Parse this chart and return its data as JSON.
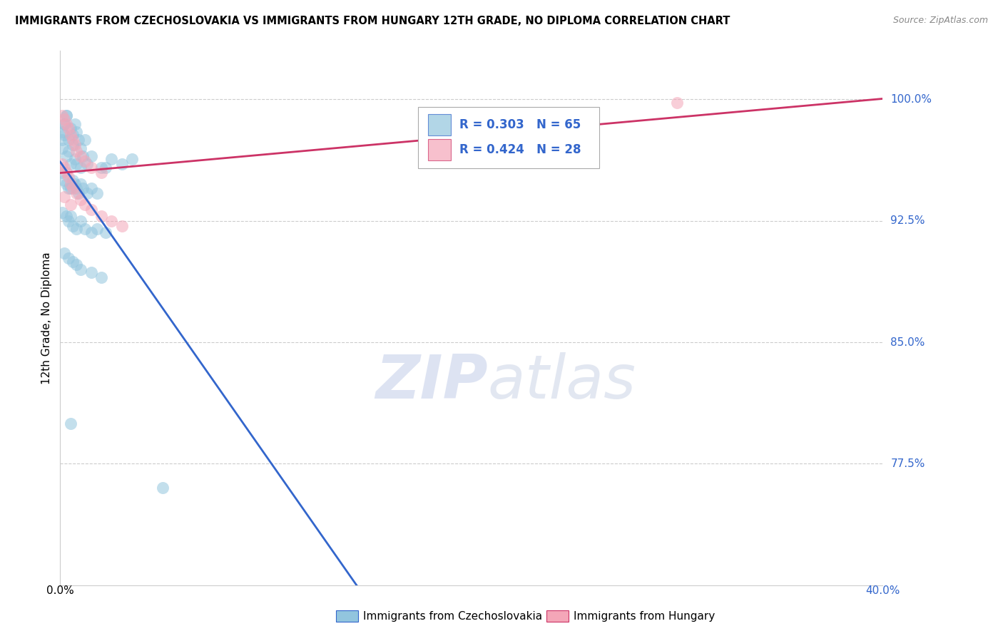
{
  "title": "IMMIGRANTS FROM CZECHOSLOVAKIA VS IMMIGRANTS FROM HUNGARY 12TH GRADE, NO DIPLOMA CORRELATION CHART",
  "source": "Source: ZipAtlas.com",
  "legend1_label": "Immigrants from Czechoslovakia",
  "legend2_label": "Immigrants from Hungary",
  "r1": 0.303,
  "n1": 65,
  "r2": 0.424,
  "n2": 28,
  "color_blue": "#92c5de",
  "color_pink": "#f4a6b8",
  "trendline_blue": "#3366cc",
  "trendline_pink": "#cc3366",
  "xlim": [
    0.0,
    0.4
  ],
  "ylim": [
    0.7,
    1.03
  ],
  "ylabel_labels": [
    "100.0%",
    "92.5%",
    "85.0%",
    "77.5%"
  ],
  "ylabel_values": [
    1.0,
    0.925,
    0.85,
    0.775
  ],
  "watermark_zip": "ZIP",
  "watermark_atlas": "atlas",
  "blue_x": [
    0.001,
    0.001,
    0.002,
    0.002,
    0.003,
    0.003,
    0.004,
    0.004,
    0.005,
    0.005,
    0.006,
    0.006,
    0.007,
    0.007,
    0.008,
    0.008,
    0.009,
    0.01,
    0.01,
    0.011,
    0.012,
    0.013,
    0.001,
    0.002,
    0.003,
    0.004,
    0.005,
    0.006,
    0.007,
    0.008,
    0.009,
    0.01,
    0.011,
    0.013,
    0.015,
    0.001,
    0.003,
    0.004,
    0.005,
    0.006,
    0.008,
    0.01,
    0.012,
    0.015,
    0.018,
    0.002,
    0.004,
    0.006,
    0.008,
    0.01,
    0.015,
    0.02,
    0.005,
    0.05,
    0.015,
    0.02,
    0.025,
    0.03,
    0.035,
    0.018,
    0.022,
    0.022,
    0.001,
    0.002,
    0.003
  ],
  "blue_y": [
    0.98,
    0.97,
    0.985,
    0.978,
    0.99,
    0.965,
    0.975,
    0.968,
    0.982,
    0.96,
    0.978,
    0.972,
    0.985,
    0.963,
    0.98,
    0.96,
    0.975,
    0.97,
    0.958,
    0.965,
    0.975,
    0.96,
    0.955,
    0.95,
    0.948,
    0.945,
    0.945,
    0.95,
    0.948,
    0.945,
    0.942,
    0.948,
    0.945,
    0.942,
    0.945,
    0.93,
    0.928,
    0.925,
    0.928,
    0.922,
    0.92,
    0.925,
    0.92,
    0.918,
    0.92,
    0.905,
    0.902,
    0.9,
    0.898,
    0.895,
    0.893,
    0.89,
    0.8,
    0.76,
    0.965,
    0.958,
    0.963,
    0.96,
    0.963,
    0.942,
    0.918,
    0.958,
    0.975,
    0.985,
    0.99
  ],
  "pink_x": [
    0.001,
    0.002,
    0.003,
    0.004,
    0.005,
    0.006,
    0.007,
    0.008,
    0.01,
    0.012,
    0.015,
    0.02,
    0.001,
    0.002,
    0.003,
    0.004,
    0.005,
    0.006,
    0.008,
    0.01,
    0.012,
    0.015,
    0.02,
    0.025,
    0.03,
    0.3,
    0.002,
    0.005
  ],
  "pink_y": [
    0.99,
    0.988,
    0.985,
    0.982,
    0.978,
    0.975,
    0.972,
    0.968,
    0.965,
    0.962,
    0.958,
    0.955,
    0.96,
    0.958,
    0.955,
    0.952,
    0.948,
    0.945,
    0.942,
    0.938,
    0.935,
    0.932,
    0.928,
    0.925,
    0.922,
    0.998,
    0.94,
    0.935
  ]
}
